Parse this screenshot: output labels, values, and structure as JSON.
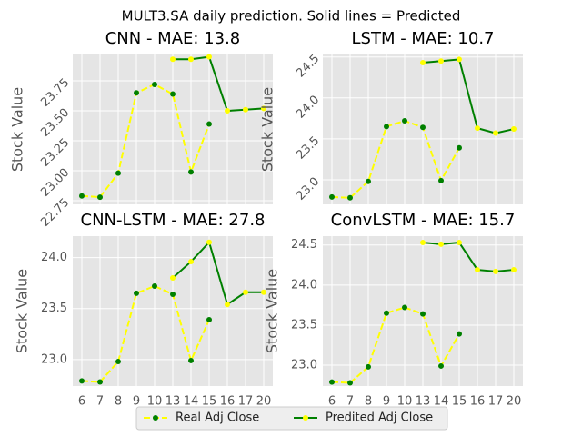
{
  "title": "MULT3.SA daily prediction. Solid lines = Predicted",
  "chart_data": [
    {
      "type": "line",
      "title": "CNN - MAE: 13.8",
      "y_label": "Stock Value",
      "categories": [
        "6",
        "7",
        "8",
        "9",
        "10",
        "13",
        "14",
        "15",
        "16",
        "17",
        "20"
      ],
      "ylim": [
        22.72,
        23.97
      ],
      "yticks": [
        22.75,
        {
          "value": 23.0,
          "label": "23.00"
        },
        23.25,
        {
          "value": 23.5,
          "label": "23.50"
        },
        23.75
      ],
      "grid": true,
      "series": [
        {
          "name": "Real Adj Close",
          "color": "#ffff00",
          "marker_color": "#008000",
          "line_style": "dashed",
          "values": [
            22.79,
            22.78,
            22.98,
            23.65,
            23.72,
            23.64,
            22.99,
            23.39,
            null,
            null,
            null
          ]
        },
        {
          "name": "Predited Adj Close",
          "color": "#008000",
          "marker_color": "#ffff00",
          "line_style": "solid",
          "values": [
            null,
            null,
            null,
            null,
            null,
            23.93,
            23.93,
            23.95,
            23.5,
            23.51,
            23.52
          ]
        }
      ]
    },
    {
      "type": "line",
      "title": "LSTM - MAE: 10.7",
      "y_label": "Stock Value",
      "categories": [
        "6",
        "7",
        "8",
        "9",
        "10",
        "13",
        "14",
        "15",
        "16",
        "17",
        "20"
      ],
      "ylim": [
        22.7,
        24.53
      ],
      "yticks": [
        {
          "value": 23.0,
          "label": "23.0"
        },
        23.5,
        {
          "value": 24.0,
          "label": "24.0"
        },
        24.5
      ],
      "grid": true,
      "series": [
        {
          "name": "Real Adj Close",
          "color": "#ffff00",
          "marker_color": "#008000",
          "line_style": "dashed",
          "values": [
            22.79,
            22.78,
            22.98,
            23.65,
            23.72,
            23.64,
            22.99,
            23.39,
            null,
            null,
            null
          ]
        },
        {
          "name": "Predited Adj Close",
          "color": "#008000",
          "marker_color": "#ffff00",
          "line_style": "solid",
          "values": [
            null,
            null,
            null,
            null,
            null,
            24.43,
            24.45,
            24.47,
            23.63,
            23.57,
            23.62
          ]
        }
      ]
    },
    {
      "type": "line",
      "title": "CNN-LSTM - MAE: 27.8",
      "y_label": "Stock Value",
      "categories": [
        "6",
        "7",
        "8",
        "9",
        "10",
        "13",
        "14",
        "15",
        "16",
        "17",
        "20"
      ],
      "ylim": [
        22.74,
        24.21
      ],
      "yticks": [
        {
          "value": 23.0,
          "label": "23.0"
        },
        23.5,
        {
          "value": 24.0,
          "label": "24.0"
        }
      ],
      "grid": true,
      "series": [
        {
          "name": "Real Adj Close",
          "color": "#ffff00",
          "marker_color": "#008000",
          "line_style": "dashed",
          "values": [
            22.79,
            22.78,
            22.98,
            23.65,
            23.72,
            23.64,
            22.99,
            23.39,
            null,
            null,
            null
          ]
        },
        {
          "name": "Predited Adj Close",
          "color": "#008000",
          "marker_color": "#ffff00",
          "line_style": "solid",
          "values": [
            null,
            null,
            null,
            null,
            null,
            23.8,
            23.96,
            24.15,
            23.54,
            23.66,
            23.66
          ]
        }
      ]
    },
    {
      "type": "line",
      "title": "ConvLSTM - MAE: 15.7",
      "y_label": "Stock Value",
      "categories": [
        "6",
        "7",
        "8",
        "9",
        "10",
        "13",
        "14",
        "15",
        "16",
        "17",
        "20"
      ],
      "ylim": [
        22.74,
        24.61
      ],
      "yticks": [
        {
          "value": 23.0,
          "label": "23.0"
        },
        23.5,
        {
          "value": 24.0,
          "label": "24.0"
        },
        24.5
      ],
      "grid": true,
      "series": [
        {
          "name": "Real Adj Close",
          "color": "#ffff00",
          "marker_color": "#008000",
          "line_style": "dashed",
          "values": [
            22.79,
            22.78,
            22.98,
            23.65,
            23.72,
            23.64,
            22.99,
            23.39,
            null,
            null,
            null
          ]
        },
        {
          "name": "Predited Adj Close",
          "color": "#008000",
          "marker_color": "#ffff00",
          "line_style": "solid",
          "values": [
            null,
            null,
            null,
            null,
            null,
            24.53,
            24.51,
            24.53,
            24.19,
            24.17,
            24.19
          ]
        }
      ]
    }
  ]
}
